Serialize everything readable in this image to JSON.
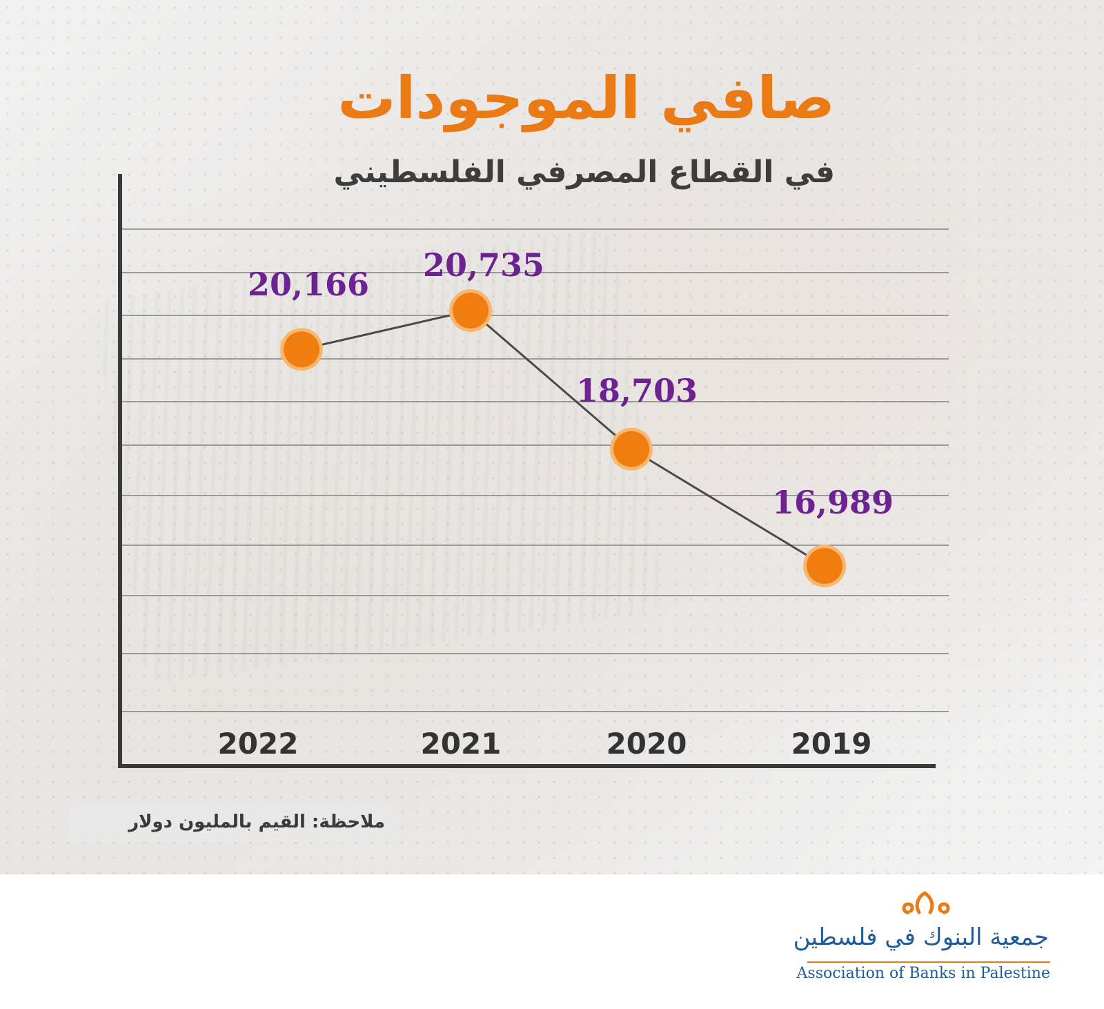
{
  "chart_data": {
    "type": "line",
    "title": "صافي الموجودات",
    "subtitle": "في القطاع المصرفي الفلسطيني",
    "note": "ملاحظة: القيم بالمليون دولار",
    "categories": [
      "2022",
      "2021",
      "2020",
      "2019"
    ],
    "values": [
      20166,
      20735,
      18703,
      16989
    ],
    "value_labels": [
      "20,166",
      "20,735",
      "18,703",
      "16,989"
    ],
    "xlabel": "",
    "ylabel": "",
    "ylim": [
      15000,
      22000
    ],
    "grid": true,
    "legend": "none",
    "colors": {
      "line": "#4a4a4a",
      "marker": "#ef7d0f",
      "marker_halo": "#f6b86f",
      "label": "#6c2391",
      "title": "#ea7a13",
      "axis": "#3a3a3a",
      "grid": "#9a9a9a"
    }
  },
  "logo": {
    "arabic": "جمعية البنوك في فلسطين",
    "english": "Association of Banks in Palestine",
    "icon": "abp-logo-icon",
    "colors": {
      "text": "#1f5c99",
      "accent": "#ea7a13"
    }
  }
}
